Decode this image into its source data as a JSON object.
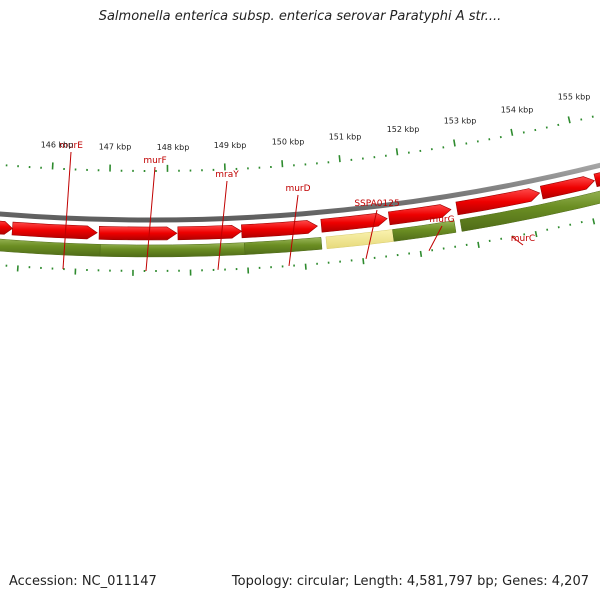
{
  "title": "Salmonella enterica subsp. enterica serovar Paratyphi A str....",
  "footer": {
    "accession": "Accession: NC_011147",
    "info": "Topology: circular; Length: 4,581,797 bp; Genes: 4,207"
  },
  "colors": {
    "gene_green": "#6b8e23",
    "gene_highlight": "#f0e68c",
    "cds_red": "#ee0000",
    "backbone": "#808080",
    "tick_green": "#2e8b2e",
    "label_red": "#c00000"
  },
  "genes": [
    "murE",
    "murF",
    "mraY",
    "murD",
    "SSPA0125",
    "murG",
    "murC"
  ],
  "highlighted_gene": "SSPA0125",
  "scale_labels": [
    "146 kbp",
    "147 kbp",
    "148 kbp",
    "149 kbp",
    "150 kbp",
    "151 kbp",
    "152 kbp",
    "153 kbp",
    "154 kbp",
    "155 kbp"
  ]
}
